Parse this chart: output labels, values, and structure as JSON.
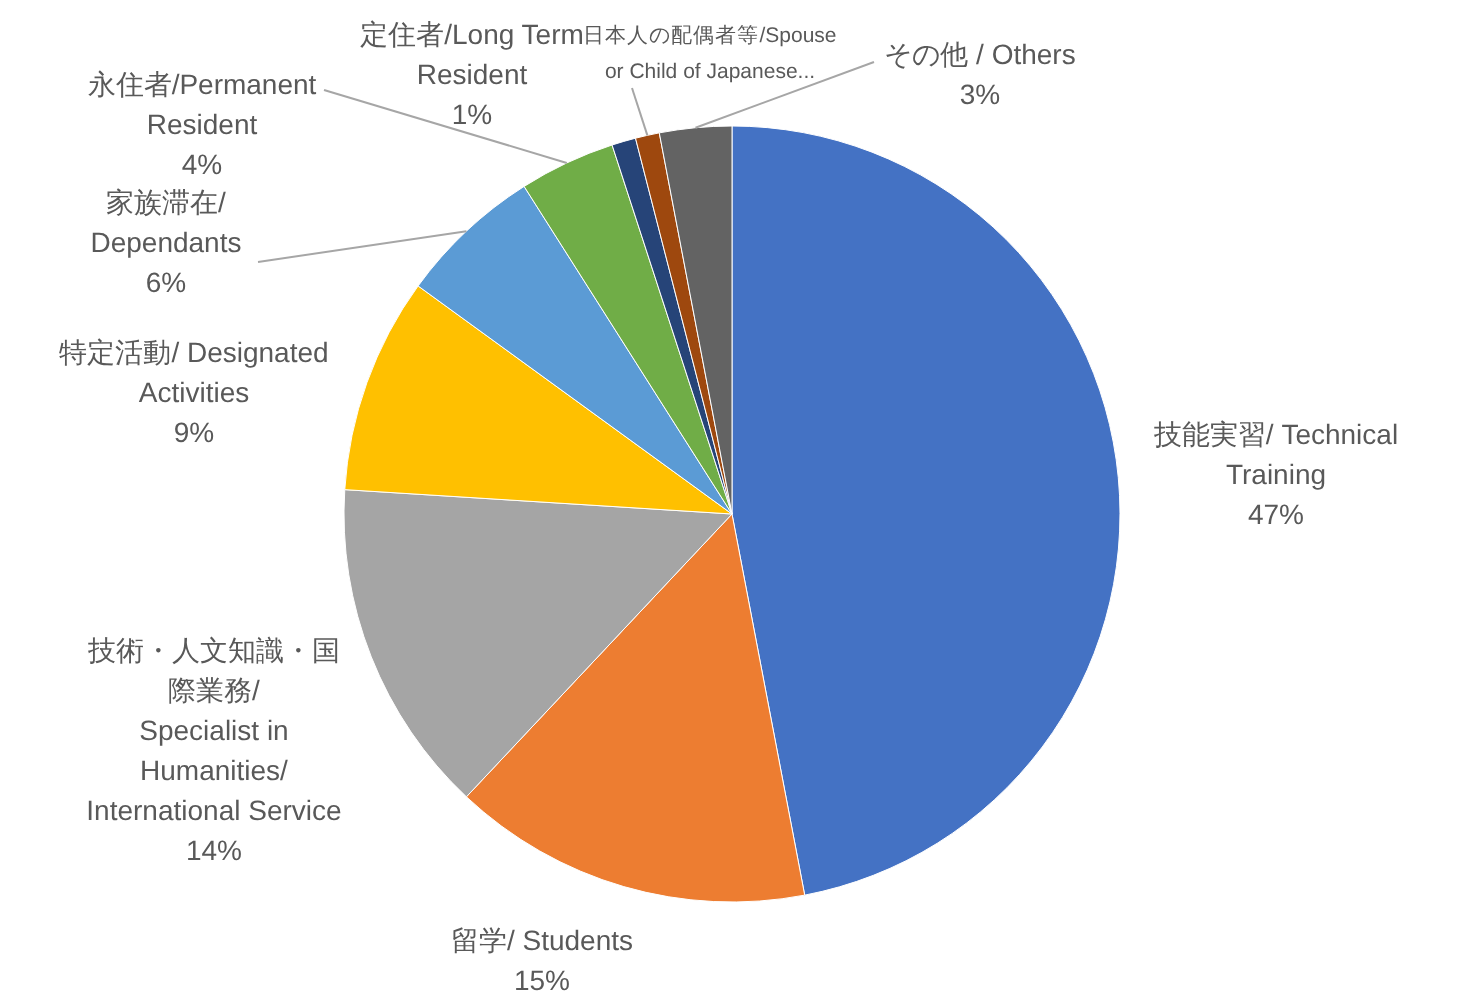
{
  "chart_data": {
    "type": "pie",
    "categories": [
      "技能実習/ Technical\nTraining",
      "留学/ Students",
      "技術・人文知識・国際業務/\nSpecialist in\nHumanities/\nInternational Service",
      "特定活動/ Designated\nActivities",
      "家族滞在/\nDependants",
      "永住者/Permanent\nResident",
      "定住者/Long Term\nResident",
      "日本人の配偶者等/Spouse\nor Child of Japanese...",
      "その他 / Others"
    ],
    "values": [
      47,
      15,
      14,
      9,
      6,
      4,
      1,
      1,
      3
    ],
    "colors": [
      "#4472c4",
      "#ed7d31",
      "#a5a5a5",
      "#ffc000",
      "#5b9bd5",
      "#70ad47",
      "#264478",
      "#9e480e",
      "#636363"
    ],
    "value_labels": [
      "47%",
      "15%",
      "14%",
      "9%",
      "6%",
      "4%",
      "1%",
      null,
      "3%"
    ]
  }
}
